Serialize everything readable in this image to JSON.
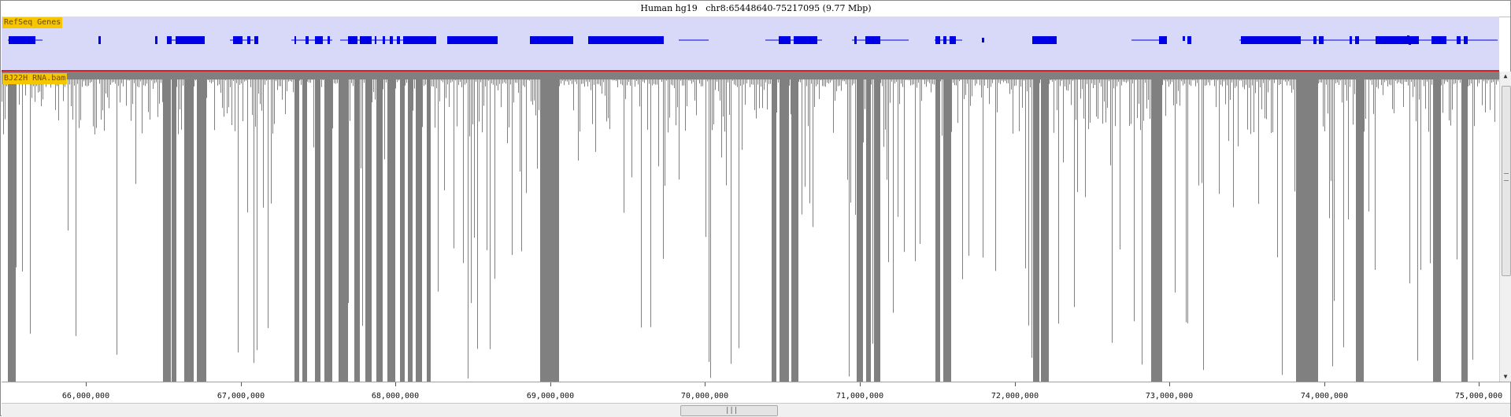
{
  "title": "Human hg19   chr8:65448640-75217095 (9.77 Mbp)",
  "tracks": {
    "genes": {
      "label": "RefSeq Genes",
      "color": "#0000e6",
      "background": "#d8d8f8"
    },
    "coverage": {
      "label": "BJ22H RNA.bam",
      "color": "#808080"
    }
  },
  "separator_color": "#d21f1f",
  "ruler": {
    "ticks": [
      "66,000,000",
      "67,000,000",
      "68,000,000",
      "69,000,000",
      "70,000,000",
      "71,000,000",
      "72,000,000",
      "73,000,000",
      "74,000,000",
      "75,000,000"
    ]
  },
  "icons": {
    "scroll_up": "arrow-up-icon",
    "scroll_down": "arrow-down-icon",
    "grip": "grip-icon"
  }
}
